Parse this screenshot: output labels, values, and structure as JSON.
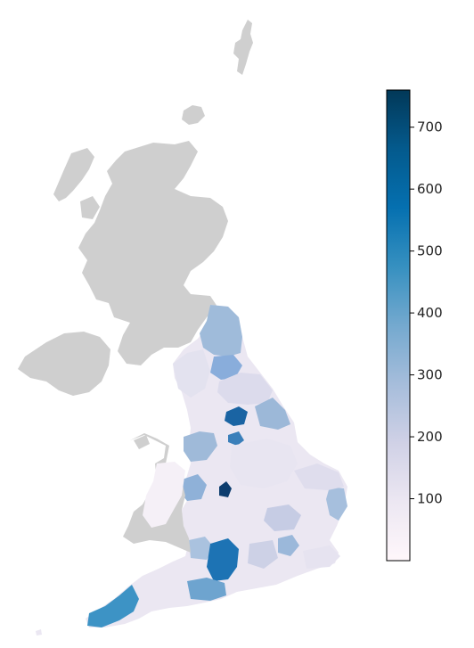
{
  "map": {
    "grey_color": "#cfcfcf",
    "regions": [
      {
        "id": "scotland",
        "kind": "grey"
      },
      {
        "id": "northern-ireland",
        "kind": "grey"
      },
      {
        "id": "wales",
        "kind": "grey"
      },
      {
        "id": "england",
        "kind": "data"
      }
    ]
  },
  "colorbar": {
    "colormap": "PuBu",
    "stops": [
      "#fff7fb",
      "#ece7f2",
      "#d0d1e6",
      "#a6bddb",
      "#74a9cf",
      "#3690c0",
      "#0570b0",
      "#045a8d",
      "#023858"
    ],
    "min": 0,
    "max": 760,
    "ticks": [
      {
        "value": 100,
        "label": "100"
      },
      {
        "value": 200,
        "label": "200"
      },
      {
        "value": 300,
        "label": "300"
      },
      {
        "value": 400,
        "label": "400"
      },
      {
        "value": 500,
        "label": "500"
      },
      {
        "value": 600,
        "label": "600"
      },
      {
        "value": 700,
        "label": "700"
      }
    ]
  }
}
